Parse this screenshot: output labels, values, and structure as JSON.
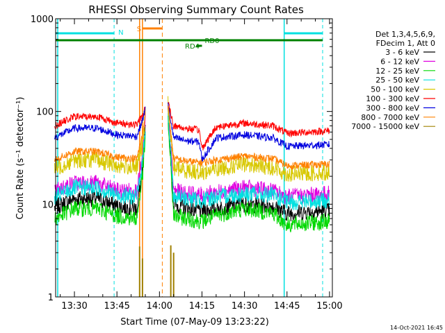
{
  "chart_data": {
    "type": "line",
    "title": "RHESSI Observing Summary Count Rates",
    "xlabel": "Start Time (07-May-09 13:23:22)",
    "ylabel": "Count Rate (s⁻¹ detector⁻¹)",
    "xlim": [
      "13:23:22",
      "15:01:00"
    ],
    "ylim": [
      1,
      1000
    ],
    "yscale": "log",
    "x_ticks": [
      "13:30",
      "13:45",
      "14:00",
      "14:15",
      "14:30",
      "14:45",
      "15:00"
    ],
    "y_ticks": [
      "1",
      "10",
      "100",
      "1000"
    ],
    "legend_header": [
      "Det 1,3,4,5,6,9,",
      "FDecim 1, Att 0"
    ],
    "legend_position": "right",
    "series": [
      {
        "name": "3 - 6 keV",
        "color": "#000000",
        "points": [
          [
            "13:23",
            9.2
          ],
          [
            "13:30",
            11.5
          ],
          [
            "13:38",
            11.5
          ],
          [
            "13:45",
            9.5
          ],
          [
            "13:52",
            9
          ],
          [
            "13:54",
            22
          ],
          [
            "13:55",
            60
          ],
          [
            "14:03",
            100
          ],
          [
            "14:05",
            10
          ],
          [
            "14:10",
            9
          ],
          [
            "14:15",
            8.5
          ],
          [
            "14:20",
            9
          ],
          [
            "14:30",
            10
          ],
          [
            "14:40",
            9.5
          ],
          [
            "14:45",
            8
          ],
          [
            "15:00",
            8.5
          ]
        ]
      },
      {
        "name": "6 - 12 keV",
        "color": "#e000e0",
        "points": [
          [
            "13:23",
            14
          ],
          [
            "13:30",
            17
          ],
          [
            "13:38",
            17
          ],
          [
            "13:45",
            14
          ],
          [
            "13:52",
            14
          ],
          [
            "13:54",
            30
          ],
          [
            "13:55",
            80
          ],
          [
            "14:03",
            110
          ],
          [
            "14:05",
            14
          ],
          [
            "14:10",
            13
          ],
          [
            "14:15",
            12.5
          ],
          [
            "14:20",
            13.5
          ],
          [
            "14:30",
            15
          ],
          [
            "14:40",
            14
          ],
          [
            "14:45",
            12
          ],
          [
            "15:00",
            13
          ]
        ]
      },
      {
        "name": "12 - 25 keV",
        "color": "#00d800",
        "points": [
          [
            "13:23",
            7
          ],
          [
            "13:30",
            9
          ],
          [
            "13:38",
            9
          ],
          [
            "13:45",
            7.5
          ],
          [
            "13:52",
            7
          ],
          [
            "13:54",
            20
          ],
          [
            "13:55",
            50
          ],
          [
            "14:03",
            80
          ],
          [
            "14:05",
            7.5
          ],
          [
            "14:10",
            7
          ],
          [
            "14:15",
            6.5
          ],
          [
            "14:20",
            7.5
          ],
          [
            "14:30",
            9
          ],
          [
            "14:40",
            8
          ],
          [
            "14:45",
            6
          ],
          [
            "15:00",
            6.5
          ]
        ]
      },
      {
        "name": "25 - 50 keV",
        "color": "#00e0e0",
        "points": [
          [
            "13:23",
            12
          ],
          [
            "13:30",
            15
          ],
          [
            "13:38",
            15
          ],
          [
            "13:45",
            12.5
          ],
          [
            "13:52",
            12
          ],
          [
            "13:54",
            28
          ],
          [
            "13:55",
            70
          ],
          [
            "14:03",
            100
          ],
          [
            "14:05",
            12
          ],
          [
            "14:10",
            11.5
          ],
          [
            "14:15",
            11
          ],
          [
            "14:20",
            12
          ],
          [
            "14:30",
            13
          ],
          [
            "14:40",
            12.5
          ],
          [
            "14:45",
            10.5
          ],
          [
            "15:00",
            11
          ]
        ]
      },
      {
        "name": "50 - 100 keV",
        "color": "#d8c800",
        "points": [
          [
            "13:23",
            24
          ],
          [
            "13:30",
            30
          ],
          [
            "13:38",
            30
          ],
          [
            "13:45",
            26
          ],
          [
            "13:52",
            25
          ],
          [
            "13:54",
            45
          ],
          [
            "13:55",
            90
          ],
          [
            "14:03",
            120
          ],
          [
            "14:05",
            25
          ],
          [
            "14:10",
            23
          ],
          [
            "14:15",
            22
          ],
          [
            "14:20",
            24
          ],
          [
            "14:30",
            27
          ],
          [
            "14:40",
            25
          ],
          [
            "14:45",
            21
          ],
          [
            "15:00",
            22
          ]
        ]
      },
      {
        "name": "100 - 300 keV",
        "color": "#ff0000",
        "points": [
          [
            "13:23",
            70
          ],
          [
            "13:30",
            88
          ],
          [
            "13:38",
            88
          ],
          [
            "13:45",
            75
          ],
          [
            "13:52",
            72
          ],
          [
            "13:54",
            90
          ],
          [
            "13:55",
            110
          ],
          [
            "14:03",
            125
          ],
          [
            "14:05",
            70
          ],
          [
            "14:10",
            65
          ],
          [
            "14:14",
            63
          ],
          [
            "14:15",
            40
          ],
          [
            "14:20",
            68
          ],
          [
            "14:30",
            75
          ],
          [
            "14:40",
            70
          ],
          [
            "14:45",
            58
          ],
          [
            "15:00",
            62
          ]
        ]
      },
      {
        "name": "300 - 800 keV",
        "color": "#0000e0",
        "points": [
          [
            "13:23",
            52
          ],
          [
            "13:30",
            66
          ],
          [
            "13:38",
            66
          ],
          [
            "13:45",
            56
          ],
          [
            "13:52",
            54
          ],
          [
            "13:54",
            80
          ],
          [
            "13:55",
            105
          ],
          [
            "14:03",
            120
          ],
          [
            "14:05",
            52
          ],
          [
            "14:10",
            48
          ],
          [
            "14:14",
            47
          ],
          [
            "14:15",
            30
          ],
          [
            "14:20",
            52
          ],
          [
            "14:30",
            56
          ],
          [
            "14:40",
            52
          ],
          [
            "14:45",
            42
          ],
          [
            "15:00",
            44
          ]
        ]
      },
      {
        "name": "800 - 7000 keV",
        "color": "#ff8000",
        "points": [
          [
            "13:23",
            30
          ],
          [
            "13:30",
            37
          ],
          [
            "13:38",
            37
          ],
          [
            "13:45",
            32
          ],
          [
            "13:52",
            31
          ],
          [
            "13:54",
            55
          ],
          [
            "13:55",
            95
          ],
          [
            "14:03",
            115
          ],
          [
            "14:05",
            31
          ],
          [
            "14:10",
            29
          ],
          [
            "14:15",
            28
          ],
          [
            "14:20",
            30
          ],
          [
            "14:30",
            33
          ],
          [
            "14:40",
            31
          ],
          [
            "14:45",
            26
          ],
          [
            "15:00",
            27
          ]
        ]
      },
      {
        "name": "7000 - 15000 keV",
        "color": "#a08000",
        "points": [
          [
            "13:53",
            3.5
          ],
          [
            "14:05",
            3.6
          ]
        ]
      }
    ],
    "annotations": [
      {
        "label": "N",
        "color": "#00e0e0"
      },
      {
        "label": "S",
        "color": "#ff8000"
      },
      {
        "label": "RD0",
        "color": "#008000"
      },
      {
        "label": "RD4",
        "color": "#008000"
      }
    ]
  },
  "footer_timestamp": "14-Oct-2021 16:45"
}
